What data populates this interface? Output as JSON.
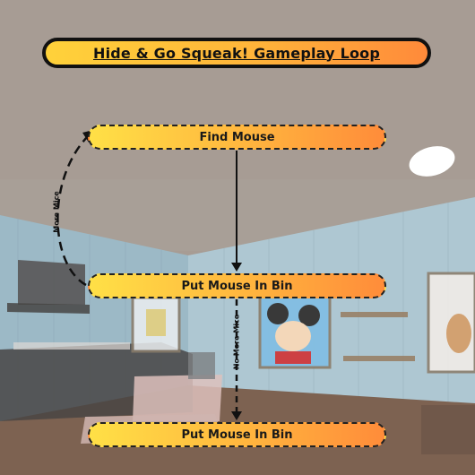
{
  "title": "Hide & Go Squeak! Gameplay Loop",
  "nodes": {
    "find": "Find Mouse",
    "put_in_bin_1": "Put Mouse In Bin",
    "put_in_bin_2": "Put Mouse In Bin"
  },
  "edges": {
    "loop_label": "More Mice",
    "end_label": "No More Mice"
  },
  "colors": {
    "wall": "#9eb4bf",
    "ceiling": "#9a8f85",
    "floor": "#6e4f3c",
    "node_start": "#ffe046",
    "node_end": "#ff8c3a"
  }
}
